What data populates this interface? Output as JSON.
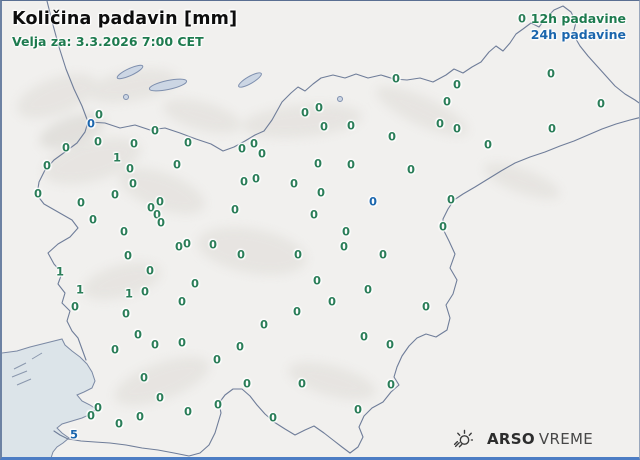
{
  "header": {
    "title": "Količina padavin [mm]",
    "validity": "Velja za: 3.3.2026 7:00 CET"
  },
  "legend": {
    "items": [
      {
        "label": "12h padavine",
        "color": "#1e7b4f"
      },
      {
        "label": "24h padavine",
        "color": "#1b66ad"
      }
    ]
  },
  "logo": {
    "brand": "ARSO",
    "product": "VREME",
    "icon": "sun-rays-icon"
  },
  "colors": {
    "value_12h_green": "#2a7d58",
    "value_24h_blue": "#1b66ad",
    "sea": "#dce4e9",
    "land": "#f1f0ee",
    "country_border": "#6f7d99",
    "frame_bottom": "#4d7dc4"
  },
  "map": {
    "region": "Slovenija",
    "units": "mm",
    "station_values": [
      [
        97,
        114,
        "0",
        "g"
      ],
      [
        89,
        123,
        "0",
        "b"
      ],
      [
        45,
        165,
        "0",
        "g"
      ],
      [
        64,
        147,
        "0",
        "g"
      ],
      [
        96,
        141,
        "0",
        "g"
      ],
      [
        132,
        143,
        "0",
        "g"
      ],
      [
        115,
        157,
        "1",
        "g"
      ],
      [
        128,
        168,
        "0",
        "g"
      ],
      [
        153,
        130,
        "0",
        "g"
      ],
      [
        186,
        142,
        "0",
        "g"
      ],
      [
        175,
        164,
        "0",
        "g"
      ],
      [
        131,
        183,
        "0",
        "g"
      ],
      [
        36,
        193,
        "0",
        "g"
      ],
      [
        79,
        202,
        "0",
        "g"
      ],
      [
        113,
        194,
        "0",
        "g"
      ],
      [
        149,
        207,
        "0",
        "g"
      ],
      [
        158,
        201,
        "0",
        "g"
      ],
      [
        155,
        214,
        "0",
        "g"
      ],
      [
        159,
        222,
        "0",
        "g"
      ],
      [
        91,
        219,
        "0",
        "g"
      ],
      [
        122,
        231,
        "0",
        "g"
      ],
      [
        177,
        246,
        "0",
        "g"
      ],
      [
        185,
        243,
        "0",
        "g"
      ],
      [
        211,
        244,
        "0",
        "g"
      ],
      [
        126,
        255,
        "0",
        "g"
      ],
      [
        58,
        271,
        "1",
        "g"
      ],
      [
        148,
        270,
        "0",
        "g"
      ],
      [
        78,
        289,
        "1",
        "g"
      ],
      [
        193,
        283,
        "0",
        "g"
      ],
      [
        127,
        293,
        "1",
        "g"
      ],
      [
        143,
        291,
        "0",
        "g"
      ],
      [
        73,
        306,
        "0",
        "g"
      ],
      [
        180,
        301,
        "0",
        "g"
      ],
      [
        124,
        313,
        "0",
        "g"
      ],
      [
        240,
        148,
        "0",
        "g"
      ],
      [
        252,
        143,
        "0",
        "g"
      ],
      [
        260,
        153,
        "0",
        "g"
      ],
      [
        242,
        181,
        "0",
        "g"
      ],
      [
        254,
        178,
        "0",
        "g"
      ],
      [
        292,
        183,
        "0",
        "g"
      ],
      [
        303,
        112,
        "0",
        "g"
      ],
      [
        317,
        107,
        "0",
        "g"
      ],
      [
        322,
        126,
        "0",
        "g"
      ],
      [
        349,
        125,
        "0",
        "g"
      ],
      [
        390,
        136,
        "0",
        "g"
      ],
      [
        316,
        163,
        "0",
        "g"
      ],
      [
        349,
        164,
        "0",
        "g"
      ],
      [
        409,
        169,
        "0",
        "g"
      ],
      [
        319,
        192,
        "0",
        "g"
      ],
      [
        394,
        78,
        "0",
        "g"
      ],
      [
        455,
        84,
        "0",
        "g"
      ],
      [
        445,
        101,
        "0",
        "g"
      ],
      [
        438,
        123,
        "0",
        "g"
      ],
      [
        455,
        128,
        "0",
        "g"
      ],
      [
        486,
        144,
        "0",
        "g"
      ],
      [
        549,
        73,
        "0",
        "g"
      ],
      [
        599,
        103,
        "0",
        "g"
      ],
      [
        550,
        128,
        "0",
        "g"
      ],
      [
        520,
        18,
        "0",
        "g"
      ],
      [
        371,
        201,
        "0",
        "b"
      ],
      [
        233,
        209,
        "0",
        "g"
      ],
      [
        312,
        214,
        "0",
        "g"
      ],
      [
        344,
        231,
        "0",
        "g"
      ],
      [
        342,
        246,
        "0",
        "g"
      ],
      [
        239,
        254,
        "0",
        "g"
      ],
      [
        296,
        254,
        "0",
        "g"
      ],
      [
        381,
        254,
        "0",
        "g"
      ],
      [
        315,
        280,
        "0",
        "g"
      ],
      [
        366,
        289,
        "0",
        "g"
      ],
      [
        330,
        301,
        "0",
        "g"
      ],
      [
        295,
        311,
        "0",
        "g"
      ],
      [
        424,
        306,
        "0",
        "g"
      ],
      [
        262,
        324,
        "0",
        "g"
      ],
      [
        449,
        199,
        "0",
        "g"
      ],
      [
        441,
        226,
        "0",
        "g"
      ],
      [
        136,
        334,
        "0",
        "g"
      ],
      [
        113,
        349,
        "0",
        "g"
      ],
      [
        153,
        344,
        "0",
        "g"
      ],
      [
        180,
        342,
        "0",
        "g"
      ],
      [
        142,
        377,
        "0",
        "g"
      ],
      [
        158,
        397,
        "0",
        "g"
      ],
      [
        96,
        407,
        "0",
        "g"
      ],
      [
        89,
        415,
        "0",
        "g"
      ],
      [
        186,
        411,
        "0",
        "g"
      ],
      [
        117,
        423,
        "0",
        "g"
      ],
      [
        138,
        416,
        "0",
        "g"
      ],
      [
        72,
        434,
        "5",
        "b"
      ],
      [
        238,
        346,
        "0",
        "g"
      ],
      [
        215,
        359,
        "0",
        "g"
      ],
      [
        245,
        383,
        "0",
        "g"
      ],
      [
        300,
        383,
        "0",
        "g"
      ],
      [
        216,
        404,
        "0",
        "g"
      ],
      [
        271,
        417,
        "0",
        "g"
      ],
      [
        362,
        336,
        "0",
        "g"
      ],
      [
        388,
        344,
        "0",
        "g"
      ],
      [
        389,
        384,
        "0",
        "g"
      ],
      [
        356,
        409,
        "0",
        "g"
      ]
    ]
  }
}
